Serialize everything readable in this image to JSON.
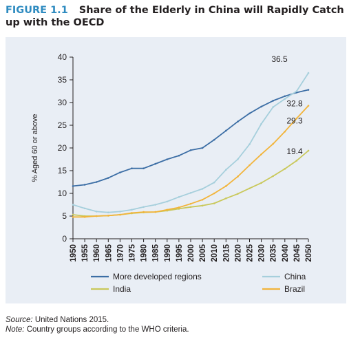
{
  "figure_label": "FIGURE 1.1",
  "figure_title": "Share of the Elderly in China will Rapidly Catch up with the OECD",
  "source_label": "Source:",
  "source_text": "United Nations 2015.",
  "note_label": "Note:",
  "note_text": "Country groups according to the WHO criteria.",
  "colors": {
    "panel_bg": "#e9eef5",
    "more_developed": "#3c6ea5",
    "china": "#a6cfdc",
    "india": "#c9c85a",
    "brazil": "#f2b43a",
    "title_accent": "#2e8bc0"
  },
  "chart_data": {
    "type": "line",
    "title": "",
    "xlabel": "",
    "ylabel": "% Aged 60 or above",
    "ylim": [
      0,
      40
    ],
    "yticks": [
      0,
      5,
      10,
      15,
      20,
      25,
      30,
      35,
      40
    ],
    "grid": false,
    "legend_position": "bottom",
    "x": [
      1950,
      1955,
      1960,
      1965,
      1970,
      1975,
      1980,
      1985,
      1990,
      1995,
      2000,
      2005,
      2010,
      2015,
      2020,
      2025,
      2030,
      2035,
      2040,
      2045,
      2050
    ],
    "series": [
      {
        "name": "More developed regions",
        "color": "#3c6ea5",
        "end_label": "",
        "values": [
          11.6,
          11.9,
          12.5,
          13.4,
          14.6,
          15.5,
          15.5,
          16.5,
          17.5,
          18.3,
          19.5,
          20.0,
          21.8,
          23.8,
          25.8,
          27.6,
          29.1,
          30.4,
          31.4,
          32.2,
          32.8
        ]
      },
      {
        "name": "China",
        "color": "#a6cfdc",
        "end_label": "36.5",
        "values": [
          7.5,
          6.7,
          6.0,
          5.8,
          6.0,
          6.4,
          7.0,
          7.5,
          8.2,
          9.2,
          10.1,
          11.0,
          12.4,
          15.2,
          17.5,
          20.8,
          25.3,
          29.0,
          30.8,
          32.5,
          36.5
        ]
      },
      {
        "name": "India",
        "color": "#c9c85a",
        "end_label": "19.4",
        "values": [
          5.3,
          5.0,
          5.0,
          5.1,
          5.3,
          5.6,
          5.8,
          5.9,
          6.2,
          6.6,
          7.0,
          7.3,
          7.8,
          8.9,
          9.9,
          11.1,
          12.3,
          13.8,
          15.4,
          17.2,
          19.4
        ]
      },
      {
        "name": "Brazil",
        "color": "#f2b43a",
        "end_label": "29.3",
        "values": [
          4.8,
          4.8,
          5.0,
          5.1,
          5.3,
          5.7,
          5.9,
          5.9,
          6.4,
          6.9,
          7.7,
          8.6,
          10.0,
          11.6,
          13.7,
          16.2,
          18.6,
          20.9,
          23.6,
          26.5,
          29.3
        ]
      }
    ],
    "end_labels": [
      {
        "series": "China",
        "text": "36.5"
      },
      {
        "series": "More developed regions",
        "text": "32.8"
      },
      {
        "series": "Brazil",
        "text": "29.3"
      },
      {
        "series": "India",
        "text": "19.4"
      }
    ]
  }
}
